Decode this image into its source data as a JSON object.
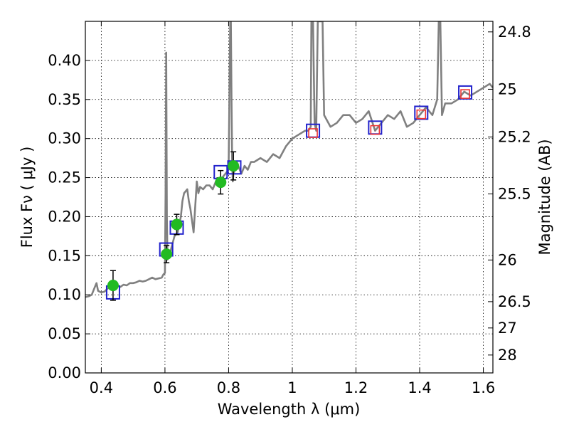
{
  "chart_data": {
    "type": "scatter",
    "xlabel": "Wavelength  λ (μm)",
    "ylabel_left": "Flux  Fν  ( μJy )",
    "ylabel_right": "Magnitude (AB)",
    "xlim": [
      0.35,
      1.63
    ],
    "ylim": [
      0.0,
      0.45
    ],
    "grid": true,
    "x_ticks": [
      {
        "value": 0.4,
        "label": "0.4"
      },
      {
        "value": 0.6,
        "label": "0.6"
      },
      {
        "value": 0.8,
        "label": "0.8"
      },
      {
        "value": 1.0,
        "label": "1"
      },
      {
        "value": 1.2,
        "label": "1.2"
      },
      {
        "value": 1.4,
        "label": "1.4"
      },
      {
        "value": 1.6,
        "label": "1.6"
      }
    ],
    "y_ticks": [
      {
        "value": 0.0,
        "label": "0.00"
      },
      {
        "value": 0.05,
        "label": "0.05"
      },
      {
        "value": 0.1,
        "label": "0.10"
      },
      {
        "value": 0.15,
        "label": "0.15"
      },
      {
        "value": 0.2,
        "label": "0.20"
      },
      {
        "value": 0.25,
        "label": "0.25"
      },
      {
        "value": 0.3,
        "label": "0.30"
      },
      {
        "value": 0.35,
        "label": "0.35"
      },
      {
        "value": 0.4,
        "label": "0.40"
      }
    ],
    "right_ticks": [
      {
        "value": 24.8,
        "label": "24.8"
      },
      {
        "value": 25.0,
        "label": "25"
      },
      {
        "value": 25.2,
        "label": "25.2"
      },
      {
        "value": 25.5,
        "label": "25.5"
      },
      {
        "value": 26.0,
        "label": "26"
      },
      {
        "value": 26.5,
        "label": "26.5"
      },
      {
        "value": 27.0,
        "label": "27"
      },
      {
        "value": 28.0,
        "label": "28"
      }
    ],
    "series": [
      {
        "kind": "model_spectrum",
        "color": "#808080",
        "x": [
          0.35,
          0.36,
          0.37,
          0.38,
          0.385,
          0.39,
          0.4,
          0.41,
          0.42,
          0.43,
          0.44,
          0.45,
          0.46,
          0.47,
          0.48,
          0.49,
          0.5,
          0.51,
          0.52,
          0.53,
          0.54,
          0.55,
          0.56,
          0.57,
          0.58,
          0.59,
          0.595,
          0.6,
          0.602,
          0.604,
          0.606,
          0.608,
          0.61,
          0.615,
          0.62,
          0.63,
          0.64,
          0.645,
          0.65,
          0.655,
          0.66,
          0.67,
          0.675,
          0.68,
          0.69,
          0.7,
          0.705,
          0.71,
          0.72,
          0.73,
          0.74,
          0.75,
          0.76,
          0.77,
          0.78,
          0.79,
          0.8,
          0.805,
          0.807,
          0.809,
          0.811,
          0.813,
          0.815,
          0.82,
          0.83,
          0.84,
          0.85,
          0.86,
          0.87,
          0.88,
          0.9,
          0.92,
          0.94,
          0.96,
          0.98,
          1.0,
          1.02,
          1.04,
          1.05,
          1.058,
          1.06,
          1.065,
          1.07,
          1.075,
          1.08,
          1.085,
          1.09,
          1.095,
          1.1,
          1.12,
          1.14,
          1.16,
          1.18,
          1.2,
          1.22,
          1.24,
          1.26,
          1.28,
          1.3,
          1.32,
          1.34,
          1.36,
          1.38,
          1.4,
          1.42,
          1.44,
          1.455,
          1.46,
          1.465,
          1.47,
          1.48,
          1.5,
          1.52,
          1.54,
          1.56,
          1.58,
          1.6,
          1.62,
          1.63
        ],
        "y": [
          0.097,
          0.098,
          0.1,
          0.11,
          0.115,
          0.105,
          0.103,
          0.104,
          0.108,
          0.11,
          0.106,
          0.112,
          0.11,
          0.113,
          0.112,
          0.115,
          0.115,
          0.116,
          0.118,
          0.117,
          0.118,
          0.12,
          0.122,
          0.12,
          0.121,
          0.122,
          0.126,
          0.128,
          0.23,
          0.41,
          0.2,
          0.145,
          0.15,
          0.15,
          0.16,
          0.175,
          0.18,
          0.19,
          0.2,
          0.22,
          0.23,
          0.235,
          0.22,
          0.21,
          0.18,
          0.245,
          0.23,
          0.238,
          0.235,
          0.24,
          0.24,
          0.235,
          0.245,
          0.24,
          0.25,
          0.255,
          0.26,
          0.45,
          0.45,
          0.35,
          0.27,
          0.245,
          0.255,
          0.26,
          0.265,
          0.255,
          0.265,
          0.26,
          0.27,
          0.27,
          0.275,
          0.27,
          0.28,
          0.275,
          0.29,
          0.3,
          0.305,
          0.31,
          0.31,
          0.315,
          0.45,
          0.45,
          0.32,
          0.31,
          0.45,
          0.45,
          0.45,
          0.45,
          0.33,
          0.315,
          0.32,
          0.33,
          0.33,
          0.32,
          0.325,
          0.335,
          0.31,
          0.32,
          0.33,
          0.325,
          0.335,
          0.315,
          0.32,
          0.33,
          0.34,
          0.33,
          0.35,
          0.45,
          0.45,
          0.33,
          0.345,
          0.345,
          0.35,
          0.36,
          0.355,
          0.36,
          0.365,
          0.37,
          0.365
        ]
      },
      {
        "kind": "measured_points",
        "marker": "circle",
        "color": "#22bb22",
        "x": [
          0.437,
          0.605,
          0.637,
          0.775,
          0.815
        ],
        "y": [
          0.112,
          0.152,
          0.19,
          0.244,
          0.265
        ],
        "yerr": [
          0.019,
          0.011,
          0.013,
          0.015,
          0.018
        ]
      },
      {
        "kind": "model_photometry",
        "marker": "square",
        "color": "#2222cc",
        "x": [
          0.437,
          0.604,
          0.637,
          0.775,
          0.818,
          1.065,
          1.26,
          1.405,
          1.543
        ],
        "y": [
          0.103,
          0.158,
          0.186,
          0.257,
          0.263,
          0.31,
          0.314,
          0.333,
          0.359
        ]
      },
      {
        "kind": "model_photometry_nir",
        "marker": "square",
        "color": "#ee3333",
        "x": [
          1.065,
          1.26,
          1.405,
          1.543
        ],
        "y": [
          0.307,
          0.311,
          0.331,
          0.357
        ]
      }
    ]
  }
}
